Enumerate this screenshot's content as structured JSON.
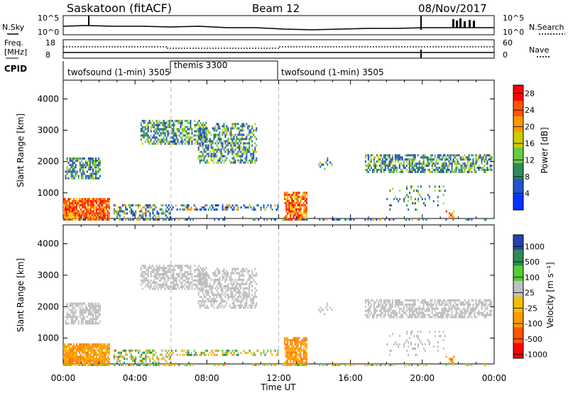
{
  "header": {
    "station": "Saskatoon (fitACF)",
    "beam": "Beam 12",
    "date": "08/Nov/2017"
  },
  "top_panel": {
    "left_label": "N.Sky",
    "right_label": "N.Search",
    "left_ticks": [
      "10^5",
      "10^0"
    ],
    "right_ticks": [
      "10^5",
      "10^0"
    ]
  },
  "freq_panel": {
    "left_label_1": "Freq.",
    "left_label_2": "[MHz]",
    "right_label": "Nave",
    "left_ticks": [
      "18",
      "8"
    ],
    "right_ticks": [
      "60",
      "0"
    ]
  },
  "cpid": {
    "label": "CPID",
    "segments": [
      {
        "text": "twofsound (1-min) 3505",
        "start_hour": 0
      },
      {
        "text": "themis 3300",
        "start_hour": 6
      },
      {
        "text": "twofsound (1-min) 3505",
        "start_hour": 12
      }
    ]
  },
  "chart_data": [
    {
      "type": "heatmap",
      "title": "Power",
      "ylabel": "Slant Range [km]",
      "xlabel": "Time UT",
      "xlim": [
        0,
        24
      ],
      "ylim": [
        180,
        4600
      ],
      "yticks": [
        "1000",
        "2000",
        "3000",
        "4000"
      ],
      "colorbar": {
        "label": "Power [dB]",
        "ticks": [
          "4",
          "8",
          "12",
          "16",
          "20",
          "24",
          "28"
        ],
        "range": [
          0,
          30
        ],
        "colors": [
          "#0033ff",
          "#2255cc",
          "#2e8b57",
          "#66cc44",
          "#cccc00",
          "#ff9900",
          "#ff5500",
          "#ff0000"
        ]
      }
    },
    {
      "type": "heatmap",
      "title": "Velocity",
      "ylabel": "Slant Range [km]",
      "xlabel": "Time UT",
      "xlim": [
        0,
        24
      ],
      "ylim": [
        180,
        4600
      ],
      "yticks": [
        "1000",
        "2000",
        "3000",
        "4000"
      ],
      "colorbar": {
        "label": "Velocity [m s⁻¹]",
        "ticks": [
          "1000",
          "500",
          "100",
          "25",
          "-25",
          "-100",
          "-500",
          "-1000"
        ],
        "colors": [
          "#2244aa",
          "#2e8b57",
          "#55cc33",
          "#c0c0c0",
          "#f0c000",
          "#ff9900",
          "#ff5500",
          "#ff0000"
        ]
      }
    }
  ],
  "xaxis": {
    "tick_labels": [
      "00:00",
      "04:00",
      "08:00",
      "12:00",
      "16:00",
      "20:00",
      "00:00"
    ],
    "label": "Time UT"
  }
}
